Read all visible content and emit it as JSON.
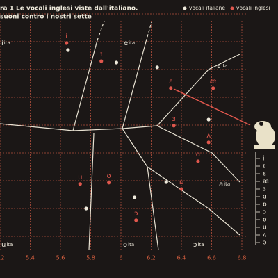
{
  "chart_data": {
    "type": "scatter",
    "title": "ra 1 Le vocali inglesi viste dall'italiano.",
    "subtitle": "suoni contro i nostri sette",
    "xlim": [
      5.2,
      6.8
    ],
    "xticks": [
      5.2,
      5.4,
      5.6,
      5.8,
      6.0,
      6.2,
      6.4,
      6.6,
      6.8
    ],
    "ylim": [
      0,
      9.5
    ],
    "yticks": [
      1,
      2,
      3,
      4,
      5,
      6,
      7,
      8,
      9
    ],
    "grid": true,
    "legend": "top-right",
    "series": [
      {
        "name": "vocali italiane",
        "color": "#efeadc",
        "x": [
          5.65,
          5.97,
          6.24,
          6.58,
          6.3,
          6.09,
          5.77
        ],
        "values": [
          7.7,
          7.25,
          7.08,
          5.2,
          2.95,
          2.4,
          2.0
        ]
      },
      {
        "name": "vocali inglesi",
        "color": "#e0574d",
        "labels": [
          "i",
          "ɪ",
          "ɛ",
          "æ",
          "ɜ",
          "ʌ",
          "ɑ",
          "ɒ",
          "ʊ",
          "u",
          "ɔ"
        ],
        "x": [
          5.64,
          5.87,
          6.33,
          6.61,
          6.35,
          6.58,
          6.51,
          6.4,
          5.92,
          5.73,
          6.1
        ],
        "values": [
          7.95,
          7.3,
          6.33,
          6.33,
          4.98,
          4.38,
          3.7,
          2.7,
          2.93,
          2.88,
          1.58
        ]
      }
    ],
    "regions": [
      {
        "text": "i",
        "sub": "ita"
      },
      {
        "text": "e",
        "sub": "ita"
      },
      {
        "text": "ɛ",
        "sub": "ita"
      },
      {
        "text": "a",
        "sub": "ita"
      },
      {
        "text": "ɔ",
        "sub": "ita"
      },
      {
        "text": "o",
        "sub": "ita"
      },
      {
        "text": "u",
        "sub": "ita"
      }
    ],
    "symbols": [
      "i",
      "ɪ",
      "ɛ",
      "æ",
      "ɜ",
      "ɑ",
      "ɒ",
      "ɔ",
      "ʊ",
      "u",
      "ʌ",
      "ə"
    ]
  }
}
